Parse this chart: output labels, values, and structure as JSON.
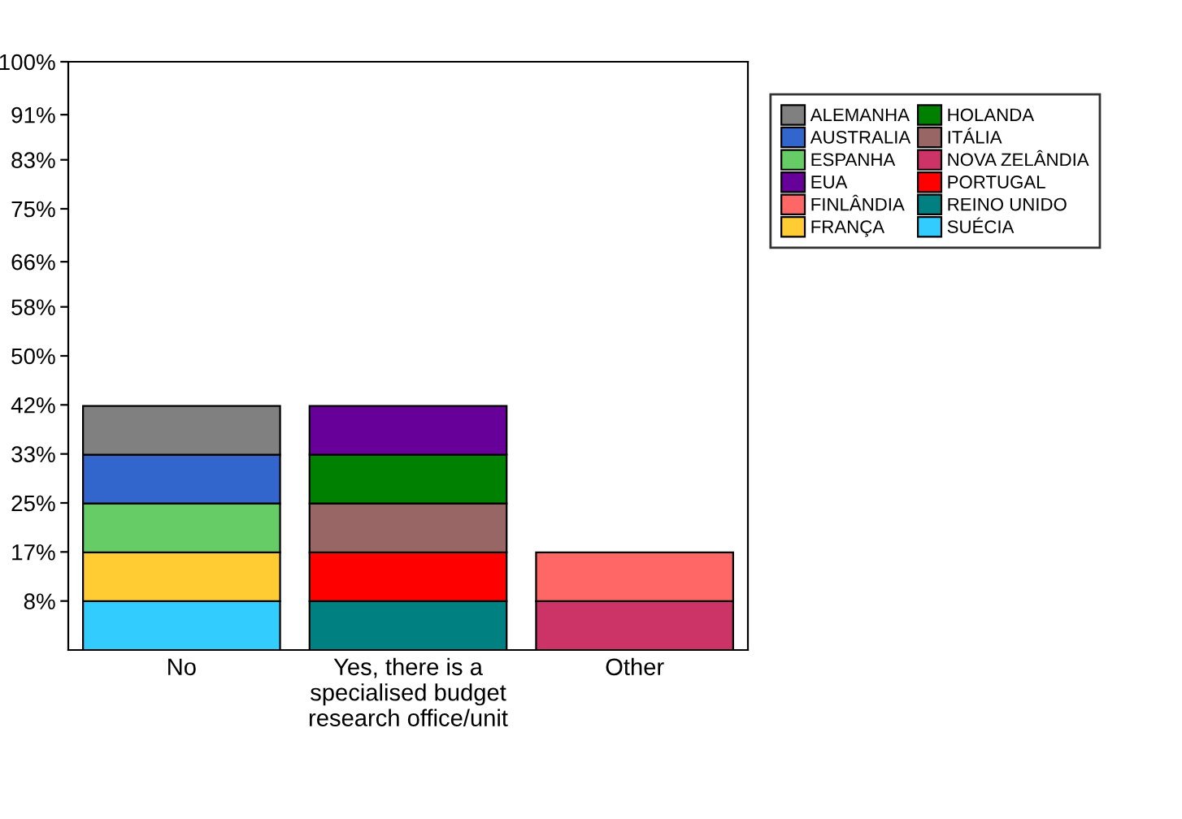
{
  "chart_data": {
    "type": "bar",
    "stacked": true,
    "legend": "right",
    "grid": false,
    "categories": [
      "No",
      "Yes, there is a specialised budget research office/unit",
      "Other"
    ],
    "ylim": [
      0,
      100
    ],
    "yticks": [
      {
        "value": 8.33,
        "label": "8%"
      },
      {
        "value": 16.67,
        "label": "17%"
      },
      {
        "value": 25,
        "label": "25%"
      },
      {
        "value": 33.33,
        "label": "33%"
      },
      {
        "value": 41.67,
        "label": "42%"
      },
      {
        "value": 50,
        "label": "50%"
      },
      {
        "value": 58.33,
        "label": "58%"
      },
      {
        "value": 66,
        "label": "66%"
      },
      {
        "value": 75,
        "label": "75%"
      },
      {
        "value": 83.33,
        "label": "83%"
      },
      {
        "value": 91,
        "label": "91%"
      },
      {
        "value": 100,
        "label": "100%"
      }
    ],
    "series": [
      {
        "name": "SUÉCIA",
        "color": "#33ccff",
        "values": [
          8.3,
          null,
          null
        ]
      },
      {
        "name": "REINO UNIDO",
        "color": "#008080",
        "values": [
          null,
          8.3,
          null
        ]
      },
      {
        "name": "NOVA ZELÂNDIA",
        "color": "#cc3366",
        "values": [
          null,
          null,
          8.3
        ]
      },
      {
        "name": "FRANÇA",
        "color": "#ffcc33",
        "values": [
          8.3,
          null,
          null
        ]
      },
      {
        "name": "PORTUGAL",
        "color": "#ff0000",
        "values": [
          null,
          8.3,
          null
        ]
      },
      {
        "name": "FINLÂNDIA",
        "color": "#ff6666",
        "values": [
          null,
          null,
          8.3
        ]
      },
      {
        "name": "ESPANHA",
        "color": "#66cc66",
        "values": [
          8.3,
          null,
          null
        ]
      },
      {
        "name": "ITÁLIA",
        "color": "#996666",
        "values": [
          null,
          8.3,
          null
        ]
      },
      {
        "name": "AUSTRALIA",
        "color": "#3366cc",
        "values": [
          8.3,
          null,
          null
        ]
      },
      {
        "name": "HOLANDA",
        "color": "#008000",
        "values": [
          null,
          8.3,
          null
        ]
      },
      {
        "name": "ALEMANHA",
        "color": "#808080",
        "values": [
          8.3,
          null,
          null
        ]
      },
      {
        "name": "EUA",
        "color": "#660099",
        "values": [
          null,
          8.3,
          null
        ]
      }
    ]
  }
}
